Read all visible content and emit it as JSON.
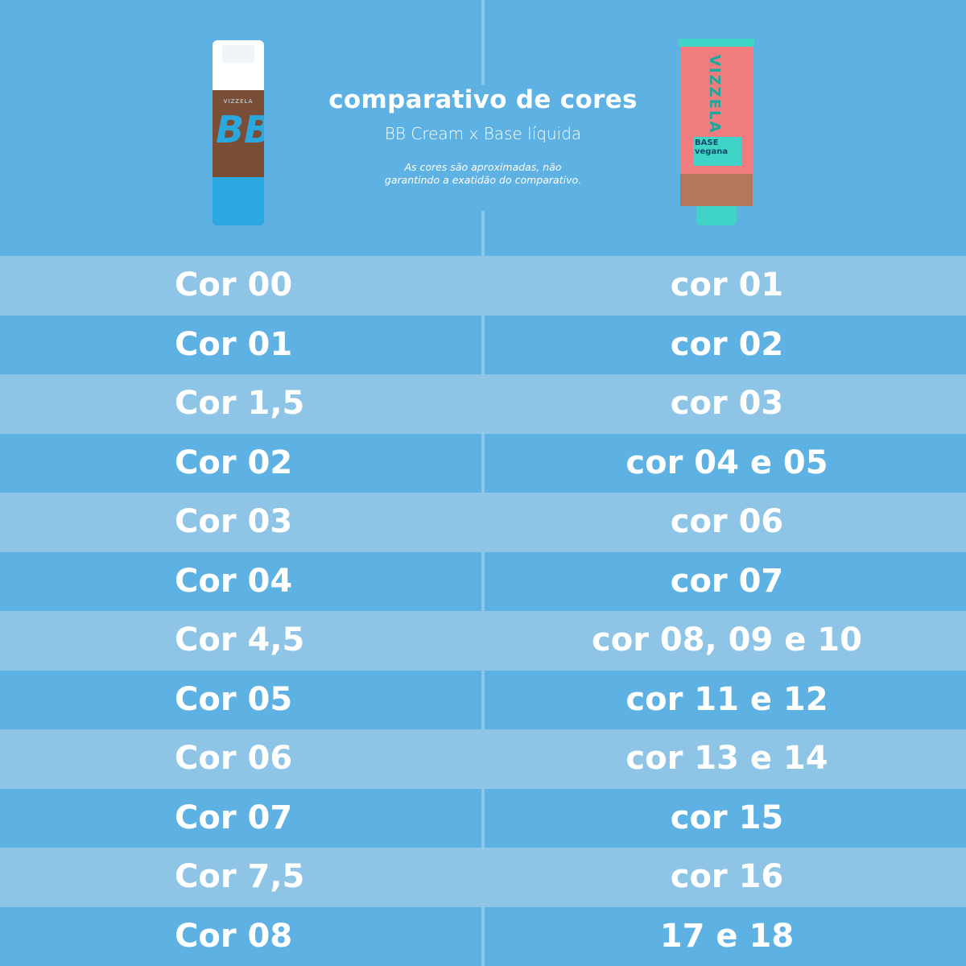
{
  "header": {
    "title": "comparativo de cores",
    "subtitle": "BB Cream x Base líquida",
    "note": "As cores são aproximadas, não garantindo a exatidão do comparativo."
  },
  "products": {
    "left": {
      "brand": "VIZZELA",
      "logo": "BB"
    },
    "right": {
      "brand": "VIZZELA",
      "label": "BASE vegana"
    }
  },
  "colors": {
    "background": "#5db1e3",
    "row_light": "#8ec5e6",
    "text": "#ffffff"
  },
  "rows": [
    {
      "bb": "Cor 00",
      "base": "cor 01"
    },
    {
      "bb": "Cor 01",
      "base": "cor 02"
    },
    {
      "bb": "Cor 1,5",
      "base": "cor 03"
    },
    {
      "bb": "Cor 02",
      "base": "cor 04 e 05"
    },
    {
      "bb": "Cor 03",
      "base": "cor 06"
    },
    {
      "bb": "Cor 04",
      "base": "cor 07"
    },
    {
      "bb": "Cor 4,5",
      "base": "cor 08, 09 e 10"
    },
    {
      "bb": "Cor 05",
      "base": "cor 11 e 12"
    },
    {
      "bb": "Cor 06",
      "base": "cor 13 e 14"
    },
    {
      "bb": "Cor 07",
      "base": "cor 15"
    },
    {
      "bb": "Cor 7,5",
      "base": "cor 16"
    },
    {
      "bb": "Cor 08",
      "base": "17 e 18"
    }
  ]
}
